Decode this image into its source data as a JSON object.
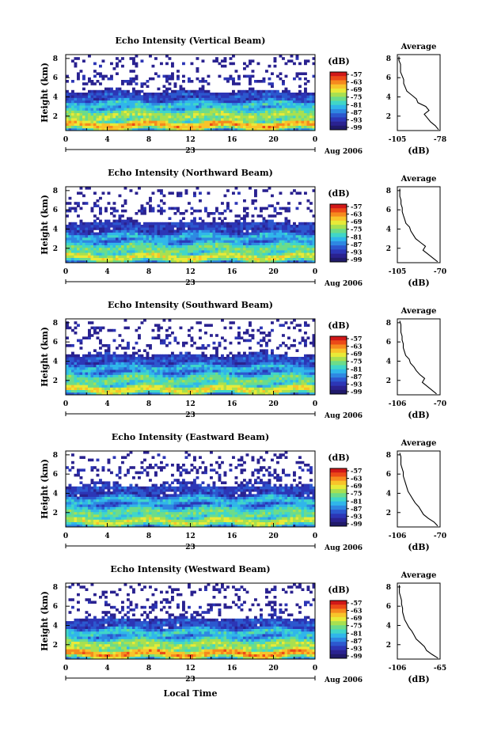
{
  "figure": {
    "common_xlabel": "Local Time",
    "date_label": "Aug 2006",
    "day_label": "23",
    "colorbar_unit": "(dB)",
    "colorbar_ticks": [
      "-57",
      "-63",
      "-69",
      "-75",
      "-81",
      "-87",
      "-93",
      "-99"
    ],
    "colorbar_colors": [
      "#d01818",
      "#ec4a18",
      "#f68a1e",
      "#f8c42a",
      "#e8ea38",
      "#a8e050",
      "#6cdc8a",
      "#40d6c8",
      "#30b6ea",
      "#2e88e2",
      "#2c58cf",
      "#2c36b6",
      "#2a2290",
      "#201a6a"
    ],
    "profile_title": "Average",
    "profile_xlabel": "(dB)"
  },
  "chart_data": [
    {
      "type": "heatmap",
      "title": "Echo Intensity (Vertical Beam)",
      "ylabel": "Height (km)",
      "x_ticks": [
        "0",
        "4",
        "8",
        "12",
        "16",
        "20",
        "0"
      ],
      "x_range": [
        0,
        24
      ],
      "y_ticks": [
        "2",
        "4",
        "6",
        "8"
      ],
      "y_range": [
        0.5,
        8.4
      ],
      "color_range_db": [
        -99,
        -57
      ],
      "layers": [
        [
          1.1,
          0.7,
          0.82
        ],
        [
          2.1,
          1.0,
          0.62
        ],
        [
          3.2,
          0.6,
          0.45
        ],
        [
          4.1,
          0.55,
          0.22
        ],
        [
          5.8,
          0.5,
          0.08
        ],
        [
          7.6,
          0.45,
          0.05
        ]
      ],
      "profile": {
        "x_ticks": [
          "-105",
          "-78"
        ],
        "x_range": [
          -105,
          -78
        ],
        "heights": [
          0.6,
          1.0,
          1.4,
          1.8,
          2.2,
          2.6,
          3.0,
          3.4,
          3.8,
          4.2,
          4.6,
          5.0,
          5.4,
          5.8,
          6.2,
          6.6,
          7.0,
          7.4,
          7.8,
          8.2
        ],
        "values": [
          -79,
          -81,
          -84,
          -86,
          -88,
          -85,
          -87,
          -92,
          -93,
          -96,
          -99,
          -100,
          -101,
          -101,
          -102,
          -103,
          -103,
          -103,
          -104,
          -104
        ]
      }
    },
    {
      "type": "heatmap",
      "title": "Echo Intensity (Northward Beam)",
      "ylabel": "Height (km)",
      "x_ticks": [
        "0",
        "4",
        "8",
        "12",
        "16",
        "20",
        "0"
      ],
      "x_range": [
        0,
        24
      ],
      "y_ticks": [
        "2",
        "4",
        "6",
        "8"
      ],
      "y_range": [
        0.5,
        8.4
      ],
      "color_range_db": [
        -99,
        -57
      ],
      "layers": [
        [
          1.1,
          0.7,
          0.7
        ],
        [
          2.0,
          0.9,
          0.55
        ],
        [
          3.2,
          0.6,
          0.4
        ],
        [
          4.3,
          0.6,
          0.2
        ],
        [
          6.1,
          0.6,
          0.08
        ],
        [
          7.8,
          0.4,
          0.05
        ]
      ],
      "profile": {
        "x_ticks": [
          "-105",
          "-70"
        ],
        "x_range": [
          -105,
          -70
        ],
        "heights": [
          0.6,
          1.0,
          1.4,
          1.8,
          2.2,
          2.6,
          3.0,
          3.4,
          3.8,
          4.2,
          4.6,
          5.0,
          5.4,
          5.8,
          6.2,
          6.6,
          7.0,
          7.4,
          7.8,
          8.2
        ],
        "values": [
          -72,
          -76,
          -80,
          -84,
          -82,
          -86,
          -90,
          -92,
          -94,
          -95,
          -98,
          -99,
          -100,
          -101,
          -101,
          -102,
          -102,
          -103,
          -103,
          -103
        ]
      }
    },
    {
      "type": "heatmap",
      "title": "Echo Intensity (Southward Beam)",
      "ylabel": "Height (km)",
      "x_ticks": [
        "0",
        "4",
        "8",
        "12",
        "16",
        "20",
        "0"
      ],
      "x_range": [
        0,
        24
      ],
      "y_ticks": [
        "2",
        "4",
        "6",
        "8"
      ],
      "y_range": [
        0.5,
        8.4
      ],
      "color_range_db": [
        -99,
        -57
      ],
      "layers": [
        [
          1.1,
          0.7,
          0.72
        ],
        [
          2.1,
          0.9,
          0.55
        ],
        [
          3.3,
          0.6,
          0.4
        ],
        [
          4.2,
          0.6,
          0.22
        ],
        [
          5.9,
          0.6,
          0.08
        ],
        [
          7.6,
          0.5,
          0.05
        ]
      ],
      "profile": {
        "x_ticks": [
          "-106",
          "-70"
        ],
        "x_range": [
          -106,
          -70
        ],
        "heights": [
          0.6,
          1.0,
          1.4,
          1.8,
          2.2,
          2.6,
          3.0,
          3.4,
          3.8,
          4.2,
          4.6,
          5.0,
          5.4,
          5.8,
          6.2,
          6.6,
          7.0,
          7.4,
          7.8,
          8.2
        ],
        "values": [
          -73,
          -77,
          -81,
          -85,
          -83,
          -87,
          -90,
          -92,
          -95,
          -96,
          -99,
          -100,
          -101,
          -101,
          -102,
          -102,
          -103,
          -103,
          -103,
          -104
        ]
      }
    },
    {
      "type": "heatmap",
      "title": "Echo Intensity (Eastward Beam)",
      "ylabel": "Height (km)",
      "x_ticks": [
        "0",
        "4",
        "8",
        "12",
        "16",
        "20",
        "0"
      ],
      "x_range": [
        0,
        24
      ],
      "y_ticks": [
        "2",
        "4",
        "6",
        "8"
      ],
      "y_range": [
        0.5,
        8.4
      ],
      "color_range_db": [
        -99,
        -57
      ],
      "layers": [
        [
          1.1,
          0.7,
          0.68
        ],
        [
          2.0,
          0.9,
          0.55
        ],
        [
          3.3,
          0.6,
          0.42
        ],
        [
          4.5,
          0.6,
          0.2
        ],
        [
          6.3,
          0.6,
          0.08
        ],
        [
          7.9,
          0.4,
          0.05
        ]
      ],
      "profile": {
        "x_ticks": [
          "-106",
          "-70"
        ],
        "x_range": [
          -106,
          -70
        ],
        "heights": [
          0.6,
          1.0,
          1.4,
          1.8,
          2.2,
          2.6,
          3.0,
          3.4,
          3.8,
          4.2,
          4.6,
          5.0,
          5.4,
          5.8,
          6.2,
          6.6,
          7.0,
          7.4,
          7.8,
          8.2
        ],
        "values": [
          -72,
          -75,
          -80,
          -84,
          -86,
          -88,
          -91,
          -93,
          -95,
          -97,
          -98,
          -99,
          -100,
          -101,
          -101,
          -102,
          -103,
          -103,
          -103,
          -104
        ]
      }
    },
    {
      "type": "heatmap",
      "title": "Echo Intensity (Westward Beam)",
      "ylabel": "Height (km)",
      "x_ticks": [
        "0",
        "4",
        "8",
        "12",
        "16",
        "20",
        "0"
      ],
      "x_range": [
        0,
        24
      ],
      "y_ticks": [
        "2",
        "4",
        "6",
        "8"
      ],
      "y_range": [
        0.5,
        8.4
      ],
      "color_range_db": [
        -99,
        -57
      ],
      "layers": [
        [
          1.1,
          0.7,
          0.85
        ],
        [
          2.0,
          1.0,
          0.62
        ],
        [
          3.3,
          0.6,
          0.45
        ],
        [
          4.3,
          0.6,
          0.22
        ],
        [
          6.0,
          0.6,
          0.08
        ],
        [
          7.7,
          0.4,
          0.05
        ]
      ],
      "profile": {
        "x_ticks": [
          "-106",
          "-65"
        ],
        "x_range": [
          -106,
          -65
        ],
        "heights": [
          0.6,
          1.0,
          1.4,
          1.8,
          2.2,
          2.6,
          3.0,
          3.4,
          3.8,
          4.2,
          4.6,
          5.0,
          5.4,
          5.8,
          6.2,
          6.6,
          7.0,
          7.4,
          7.8,
          8.2
        ],
        "values": [
          -67,
          -73,
          -78,
          -80,
          -84,
          -88,
          -90,
          -92,
          -95,
          -97,
          -99,
          -100,
          -101,
          -101,
          -102,
          -102,
          -103,
          -104,
          -104,
          -104
        ]
      }
    }
  ]
}
